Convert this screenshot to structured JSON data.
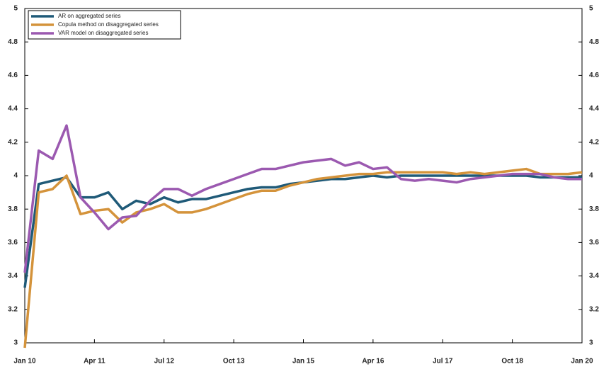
{
  "chart_data": {
    "type": "line",
    "x": [
      "Jan 10",
      null,
      null,
      null,
      null,
      "Apr 11",
      null,
      null,
      null,
      null,
      "Jul 12",
      null,
      null,
      null,
      null,
      "Oct 13",
      null,
      null,
      null,
      null,
      "Jan 15",
      null,
      null,
      null,
      null,
      "Apr 16",
      null,
      null,
      null,
      null,
      "Jul 17",
      null,
      null,
      null,
      null,
      "Oct 18",
      null,
      null,
      null,
      null,
      "Jan 20"
    ],
    "series": [
      {
        "name": "AR on aggregated series",
        "color": "#1f5a78",
        "values": [
          3.33,
          3.95,
          3.97,
          3.99,
          3.87,
          3.87,
          3.9,
          3.8,
          3.85,
          3.83,
          3.87,
          3.84,
          3.86,
          3.86,
          3.88,
          3.9,
          3.92,
          3.93,
          3.93,
          3.95,
          3.96,
          3.97,
          3.98,
          3.98,
          3.99,
          4.0,
          3.99,
          4.0,
          4.0,
          4.0,
          4.0,
          4.0,
          4.0,
          4.0,
          4.0,
          4.0,
          4.0,
          3.99,
          3.99,
          3.99,
          3.99
        ]
      },
      {
        "name": "Copula method on disaggregated series",
        "color": "#d4933b",
        "values": [
          2.97,
          3.9,
          3.92,
          4.0,
          3.77,
          3.79,
          3.8,
          3.72,
          3.78,
          3.8,
          3.83,
          3.78,
          3.78,
          3.8,
          3.83,
          3.86,
          3.89,
          3.91,
          3.91,
          3.94,
          3.96,
          3.98,
          3.99,
          4.0,
          4.01,
          4.01,
          4.02,
          4.02,
          4.02,
          4.02,
          4.02,
          4.01,
          4.02,
          4.01,
          4.02,
          4.03,
          4.04,
          4.01,
          4.01,
          4.01,
          4.02
        ]
      },
      {
        "name": "VAR model on disaggregated series",
        "color": "#9b59b0",
        "values": [
          3.42,
          4.15,
          4.1,
          4.3,
          3.87,
          3.78,
          3.68,
          3.75,
          3.76,
          3.85,
          3.92,
          3.92,
          3.88,
          3.92,
          3.95,
          3.98,
          4.01,
          4.04,
          4.04,
          4.06,
          4.08,
          4.09,
          4.1,
          4.06,
          4.08,
          4.04,
          4.05,
          3.98,
          3.97,
          3.98,
          3.97,
          3.96,
          3.98,
          3.99,
          4.0,
          4.01,
          4.01,
          4.01,
          3.99,
          3.98,
          3.98
        ]
      }
    ],
    "ylim": [
      3,
      5
    ],
    "yticks": [
      3,
      3.2,
      3.4,
      3.6,
      3.8,
      4,
      4.2,
      4.4,
      4.6,
      4.8,
      5
    ],
    "y2lim": [
      3,
      5
    ],
    "y2ticks": [
      3,
      3.2,
      3.4,
      3.6,
      3.8,
      4,
      4.2,
      4.4,
      4.6,
      4.8,
      5
    ],
    "legend": "upper left"
  }
}
